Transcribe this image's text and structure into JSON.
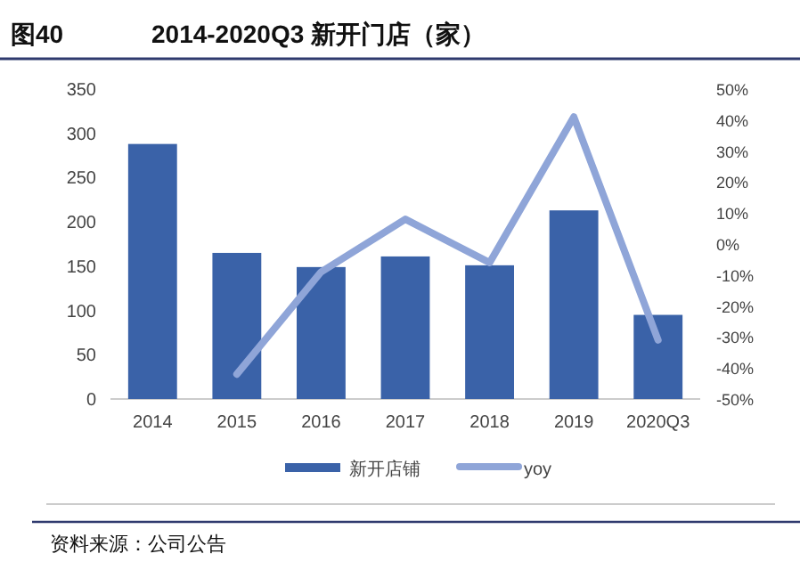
{
  "chart_data": {
    "type": "bar",
    "title": "图40",
    "subtitle": "2014-2020Q3 新开门店（家）",
    "categories": [
      "2014",
      "2015",
      "2016",
      "2017",
      "2018",
      "2019",
      "2020Q3"
    ],
    "series": [
      {
        "name": "新开店铺",
        "color": "#3a62a8",
        "values": [
          288,
          165,
          149,
          161,
          151,
          213,
          95
        ]
      },
      {
        "name": "yoy",
        "type": "line",
        "axis": "y2",
        "color": "#8fa5d8",
        "values": [
          null,
          -42,
          -9,
          8,
          -6,
          41,
          -31
        ]
      }
    ],
    "ylim": [
      0,
      350
    ],
    "yticks": [
      0,
      50,
      100,
      150,
      200,
      250,
      300,
      350
    ],
    "y2lim": [
      -50,
      50
    ],
    "y2ticks": [
      {
        "value": -50,
        "label": "-50%"
      },
      {
        "value": -40,
        "label": "-40%"
      },
      {
        "value": -30,
        "label": "-30%"
      },
      {
        "value": -20,
        "label": "-20%"
      },
      {
        "value": -10,
        "label": "-10%"
      },
      {
        "value": 0,
        "label": "0%"
      },
      {
        "value": 10,
        "label": "10%"
      },
      {
        "value": 20,
        "label": "20%"
      },
      {
        "value": 30,
        "label": "30%"
      },
      {
        "value": 40,
        "label": "40%"
      },
      {
        "value": 50,
        "label": "50%"
      }
    ],
    "legend": "bottom",
    "annotations": [
      "资料来源：公司公告"
    ]
  }
}
